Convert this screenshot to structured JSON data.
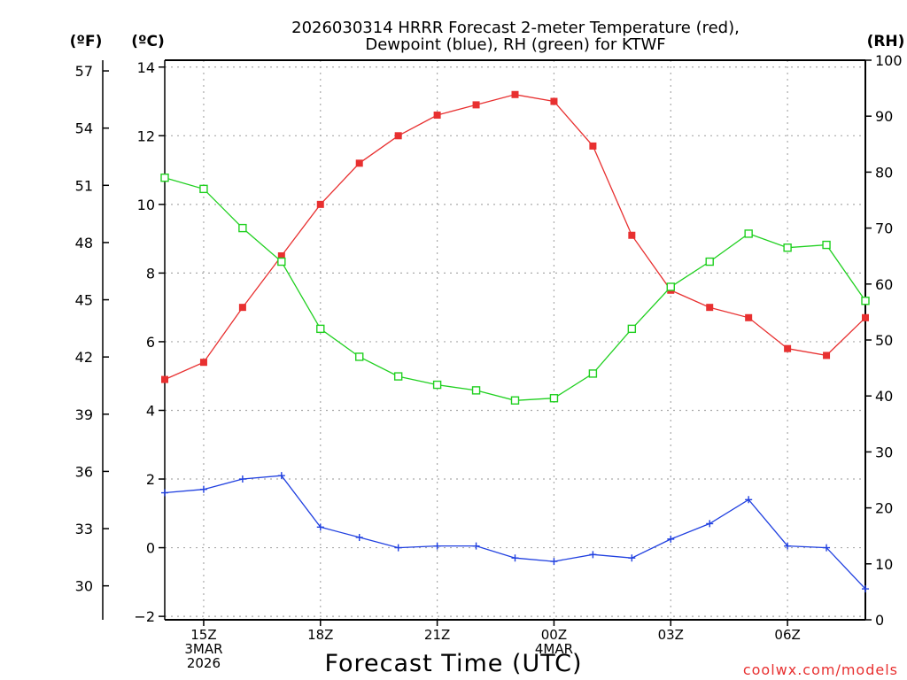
{
  "chart_data": {
    "type": "line",
    "title_line1": "2026030314 HRRR Forecast 2-meter Temperature (red),",
    "title_line2": "Dewpoint (blue), RH (green) for KTWF",
    "unit_f": "(ºF)",
    "unit_c": "(ºC)",
    "unit_rh": "(RH)",
    "xlabel": "Forecast Time (UTC)",
    "credit": "coolwx.com/models",
    "x_hours": [
      14,
      15,
      16,
      17,
      18,
      19,
      20,
      21,
      22,
      23,
      24,
      25,
      26,
      27,
      28,
      29,
      30,
      31,
      32
    ],
    "xlim": [
      14,
      32
    ],
    "x_ticks": [
      {
        "h": 15,
        "lines": [
          "15Z",
          "3MAR",
          "2026"
        ]
      },
      {
        "h": 18,
        "lines": [
          "18Z"
        ]
      },
      {
        "h": 21,
        "lines": [
          "21Z"
        ]
      },
      {
        "h": 24,
        "lines": [
          "00Z",
          "4MAR"
        ]
      },
      {
        "h": 27,
        "lines": [
          "03Z"
        ]
      },
      {
        "h": 30,
        "lines": [
          "06Z"
        ]
      }
    ],
    "c_axis": {
      "ylim": [
        -2.1,
        14.2
      ],
      "ticks": [
        -2,
        0,
        2,
        4,
        6,
        8,
        10,
        12,
        14
      ]
    },
    "f_axis": {
      "ticks": [
        30,
        33,
        36,
        39,
        42,
        45,
        48,
        51,
        54,
        57
      ]
    },
    "rh_axis": {
      "ylim": [
        0,
        100
      ],
      "ticks": [
        0,
        10,
        20,
        30,
        40,
        50,
        60,
        70,
        80,
        90,
        100
      ]
    },
    "series": [
      {
        "name": "Temperature",
        "unit": "C",
        "color": "#e83030",
        "marker": "filled-square",
        "values": [
          4.9,
          5.4,
          7.0,
          8.5,
          10.0,
          11.2,
          12.0,
          12.6,
          12.9,
          13.2,
          13.0,
          11.7,
          9.1,
          7.5,
          7.0,
          6.7,
          5.8,
          5.6,
          6.7
        ]
      },
      {
        "name": "Dewpoint",
        "unit": "C",
        "color": "#2040e0",
        "marker": "plus",
        "values": [
          1.6,
          1.7,
          2.0,
          2.1,
          0.6,
          0.3,
          0.0,
          0.05,
          0.05,
          -0.3,
          -0.4,
          -0.2,
          -0.3,
          0.25,
          0.7,
          1.4,
          0.05,
          0.0,
          -1.2
        ]
      },
      {
        "name": "RH",
        "unit": "%",
        "color": "#20d020",
        "marker": "open-square",
        "values": [
          79,
          77,
          70,
          64,
          52,
          47,
          43.5,
          42,
          41,
          39.2,
          39.6,
          44,
          52,
          59.5,
          64,
          69,
          66.5,
          67,
          57
        ]
      }
    ]
  }
}
